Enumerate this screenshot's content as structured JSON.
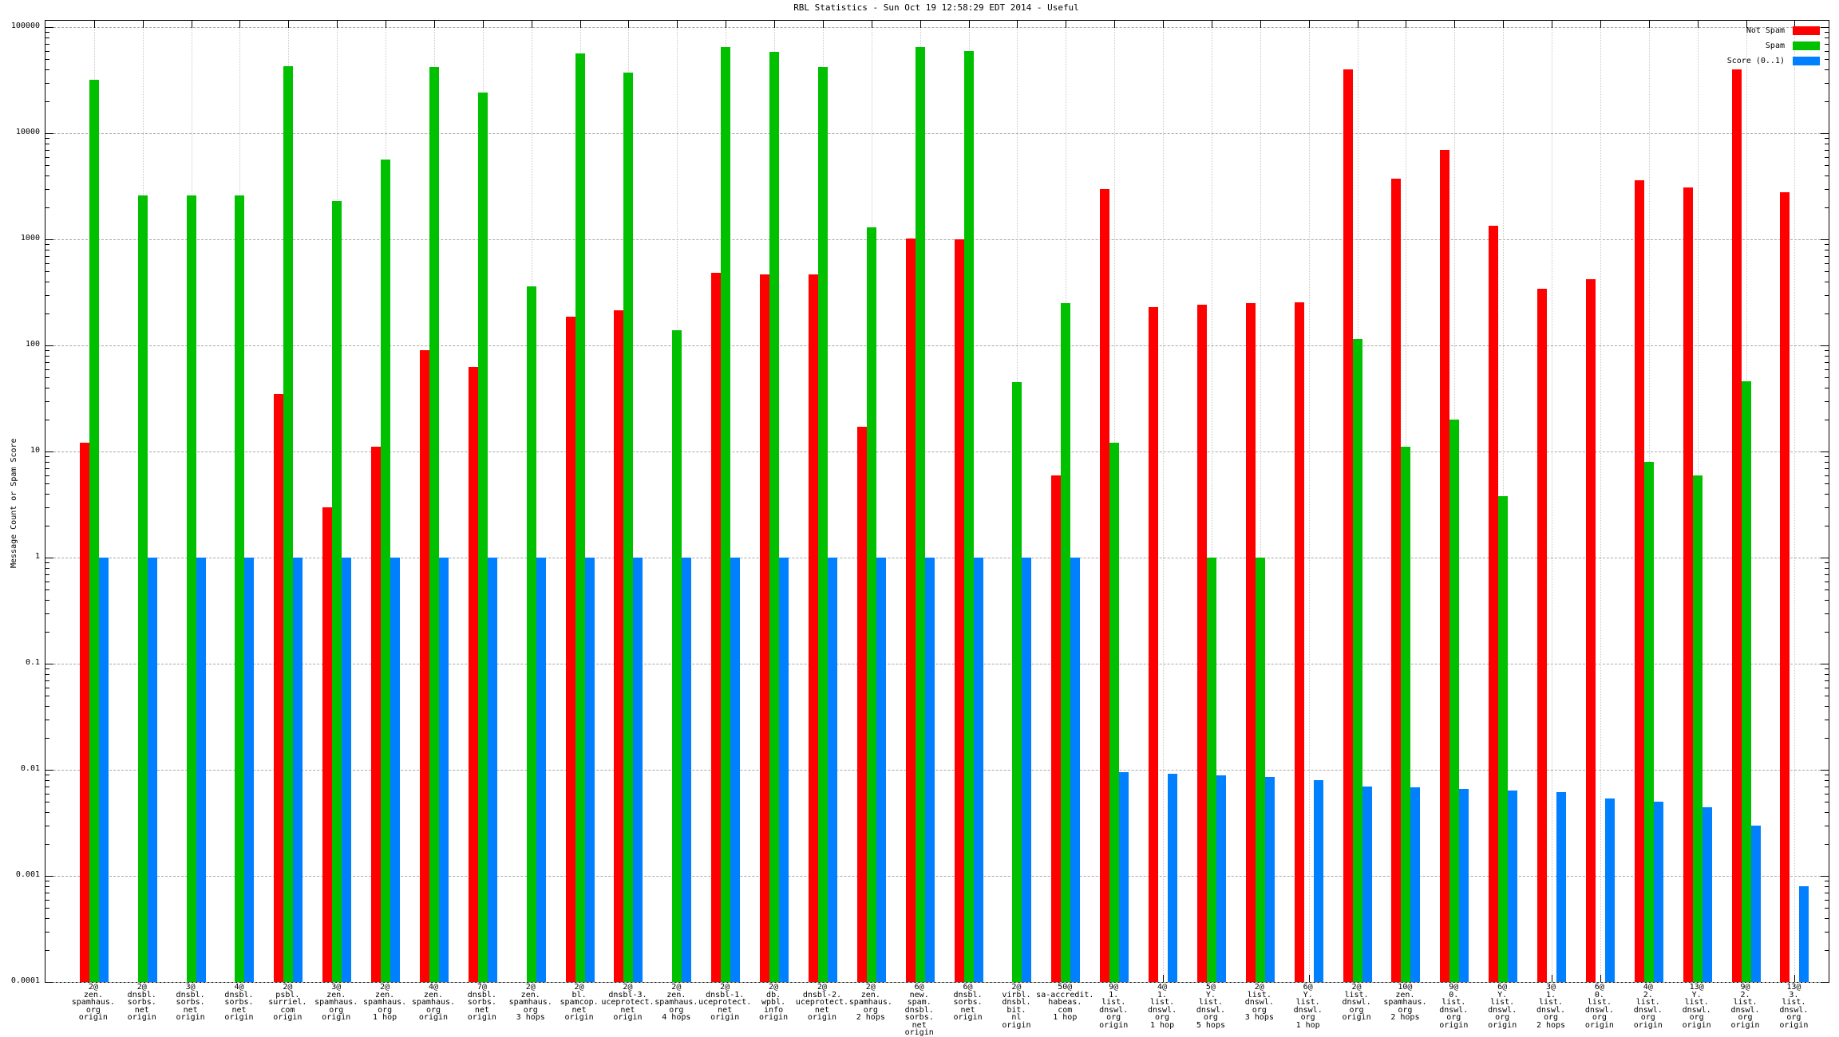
{
  "title": "RBL Statistics - Sun Oct 19 12:58:29 EDT 2014 - Useful",
  "y_axis": {
    "label": "Message Count or Spam Score",
    "tick_labels": [
      "100000",
      "10000",
      "1000",
      "100",
      "10",
      "1",
      "0.1",
      "0.01",
      "0.001",
      "0.0001"
    ],
    "scale": "log",
    "range": [
      0.0001,
      100000
    ]
  },
  "chart_data": {
    "type": "bar",
    "log_scale": true,
    "ylim": [
      0.0001,
      100000
    ],
    "grid": "on",
    "legend_position": "top-right",
    "title": "RBL Statistics - Sun Oct 19 12:58:29 EDT 2014 - Useful",
    "ylabel": "Message Count or Spam Score",
    "categories": [
      [
        "2@",
        "zen.",
        "spamhaus.",
        "org",
        "origin"
      ],
      [
        "2@",
        "dnsbl.",
        "sorbs.",
        "net",
        "origin"
      ],
      [
        "3@",
        "dnsbl.",
        "sorbs.",
        "net",
        "origin"
      ],
      [
        "4@",
        "dnsbl.",
        "sorbs.",
        "net",
        "origin"
      ],
      [
        "2@",
        "psbl.",
        "surriel.",
        "com",
        "origin"
      ],
      [
        "3@",
        "zen.",
        "spamhaus.",
        "org",
        "origin"
      ],
      [
        "2@",
        "zen.",
        "spamhaus.",
        "org",
        "1 hop"
      ],
      [
        "4@",
        "zen.",
        "spamhaus.",
        "org",
        "origin"
      ],
      [
        "7@",
        "dnsbl.",
        "sorbs.",
        "net",
        "origin"
      ],
      [
        "2@",
        "zen.",
        "spamhaus.",
        "org",
        "3 hops"
      ],
      [
        "2@",
        "bl.",
        "spamcop.",
        "net",
        "origin"
      ],
      [
        "2@",
        "dnsbl-3.",
        "uceprotect.",
        "net",
        "origin"
      ],
      [
        "2@",
        "zen.",
        "spamhaus.",
        "org",
        "4 hops"
      ],
      [
        "2@",
        "dnsbl-1.",
        "uceprotect.",
        "net",
        "origin"
      ],
      [
        "2@",
        "db.",
        "wpbl.",
        "info",
        "origin"
      ],
      [
        "2@",
        "dnsbl-2.",
        "uceprotect.",
        "net",
        "origin"
      ],
      [
        "2@",
        "zen.",
        "spamhaus.",
        "org",
        "2 hops"
      ],
      [
        "6@",
        "new.",
        "spam.",
        "dnsbl.",
        "sorbs.",
        "net",
        "origin"
      ],
      [
        "6@",
        "dnsbl.",
        "sorbs.",
        "net",
        "origin"
      ],
      [
        "2@",
        "virbl.",
        "dnsbl.",
        "bit.",
        "nl",
        "origin"
      ],
      [
        "50@",
        "sa-accredit.",
        "habeas.",
        "com",
        "1 hop"
      ],
      [
        "9@",
        "1.",
        "list.",
        "dnswl.",
        "org",
        "origin"
      ],
      [
        "4@",
        "1.",
        "list.",
        "dnswl.",
        "org",
        "1 hop"
      ],
      [
        "5@",
        "Y.",
        "list.",
        "dnswl.",
        "org",
        "5 hops"
      ],
      [
        "2@",
        "list.",
        "dnswl.",
        "org",
        "3 hops"
      ],
      [
        "6@",
        "Y.",
        "list.",
        "dnswl.",
        "org",
        "1 hop"
      ],
      [
        "2@",
        "list.",
        "dnswl.",
        "org",
        "origin"
      ],
      [
        "10@",
        "zen.",
        "spamhaus.",
        "org",
        "2 hops"
      ],
      [
        "9@",
        "0.",
        "list.",
        "dnswl.",
        "org",
        "origin"
      ],
      [
        "6@",
        "Y.",
        "list.",
        "dnswl.",
        "org",
        "origin"
      ],
      [
        "3@",
        "1.",
        "list.",
        "dnswl.",
        "org",
        "2 hops"
      ],
      [
        "6@",
        "0.",
        "list.",
        "dnswl.",
        "org",
        "origin"
      ],
      [
        "4@",
        "2.",
        "list.",
        "dnswl.",
        "org",
        "origin"
      ],
      [
        "13@",
        "Y.",
        "list.",
        "dnswl.",
        "org",
        "origin"
      ],
      [
        "9@",
        "2.",
        "list.",
        "dnswl.",
        "org",
        "origin"
      ],
      [
        "13@",
        "3.",
        "list.",
        "dnswl.",
        "org",
        "origin"
      ]
    ],
    "series": [
      {
        "name": "Not Spam",
        "color": "#ff0000",
        "values": [
          12,
          null,
          null,
          null,
          35,
          3,
          11,
          90,
          63,
          null,
          185,
          215,
          null,
          480,
          470,
          465,
          17,
          1020,
          1000,
          null,
          6,
          3000,
          230,
          240,
          250,
          255,
          40000,
          3700,
          7000,
          1350,
          340,
          420,
          3600,
          3100,
          40000,
          2800
        ]
      },
      {
        "name": "Spam",
        "color": "#00c000",
        "values": [
          32000,
          2600,
          2600,
          2600,
          43000,
          2300,
          5600,
          42000,
          24000,
          360,
          56000,
          37000,
          140,
          65000,
          58000,
          42000,
          1300,
          65000,
          60000,
          45,
          250,
          12,
          null,
          1,
          1,
          null,
          115,
          11,
          20,
          3.8,
          null,
          null,
          8,
          6,
          46,
          null
        ]
      },
      {
        "name": "Score (0..1)",
        "color": "#0080ff",
        "values": [
          1,
          1,
          1,
          1,
          1,
          1,
          1,
          1,
          1,
          1,
          1,
          1,
          1,
          1,
          1,
          1,
          1,
          1,
          1,
          1,
          1,
          0.0095,
          0.0092,
          0.0089,
          0.0086,
          0.008,
          0.007,
          0.0068,
          0.0066,
          0.0064,
          0.0062,
          0.0054,
          0.005,
          0.0044,
          0.003,
          0.0008
        ]
      }
    ]
  }
}
